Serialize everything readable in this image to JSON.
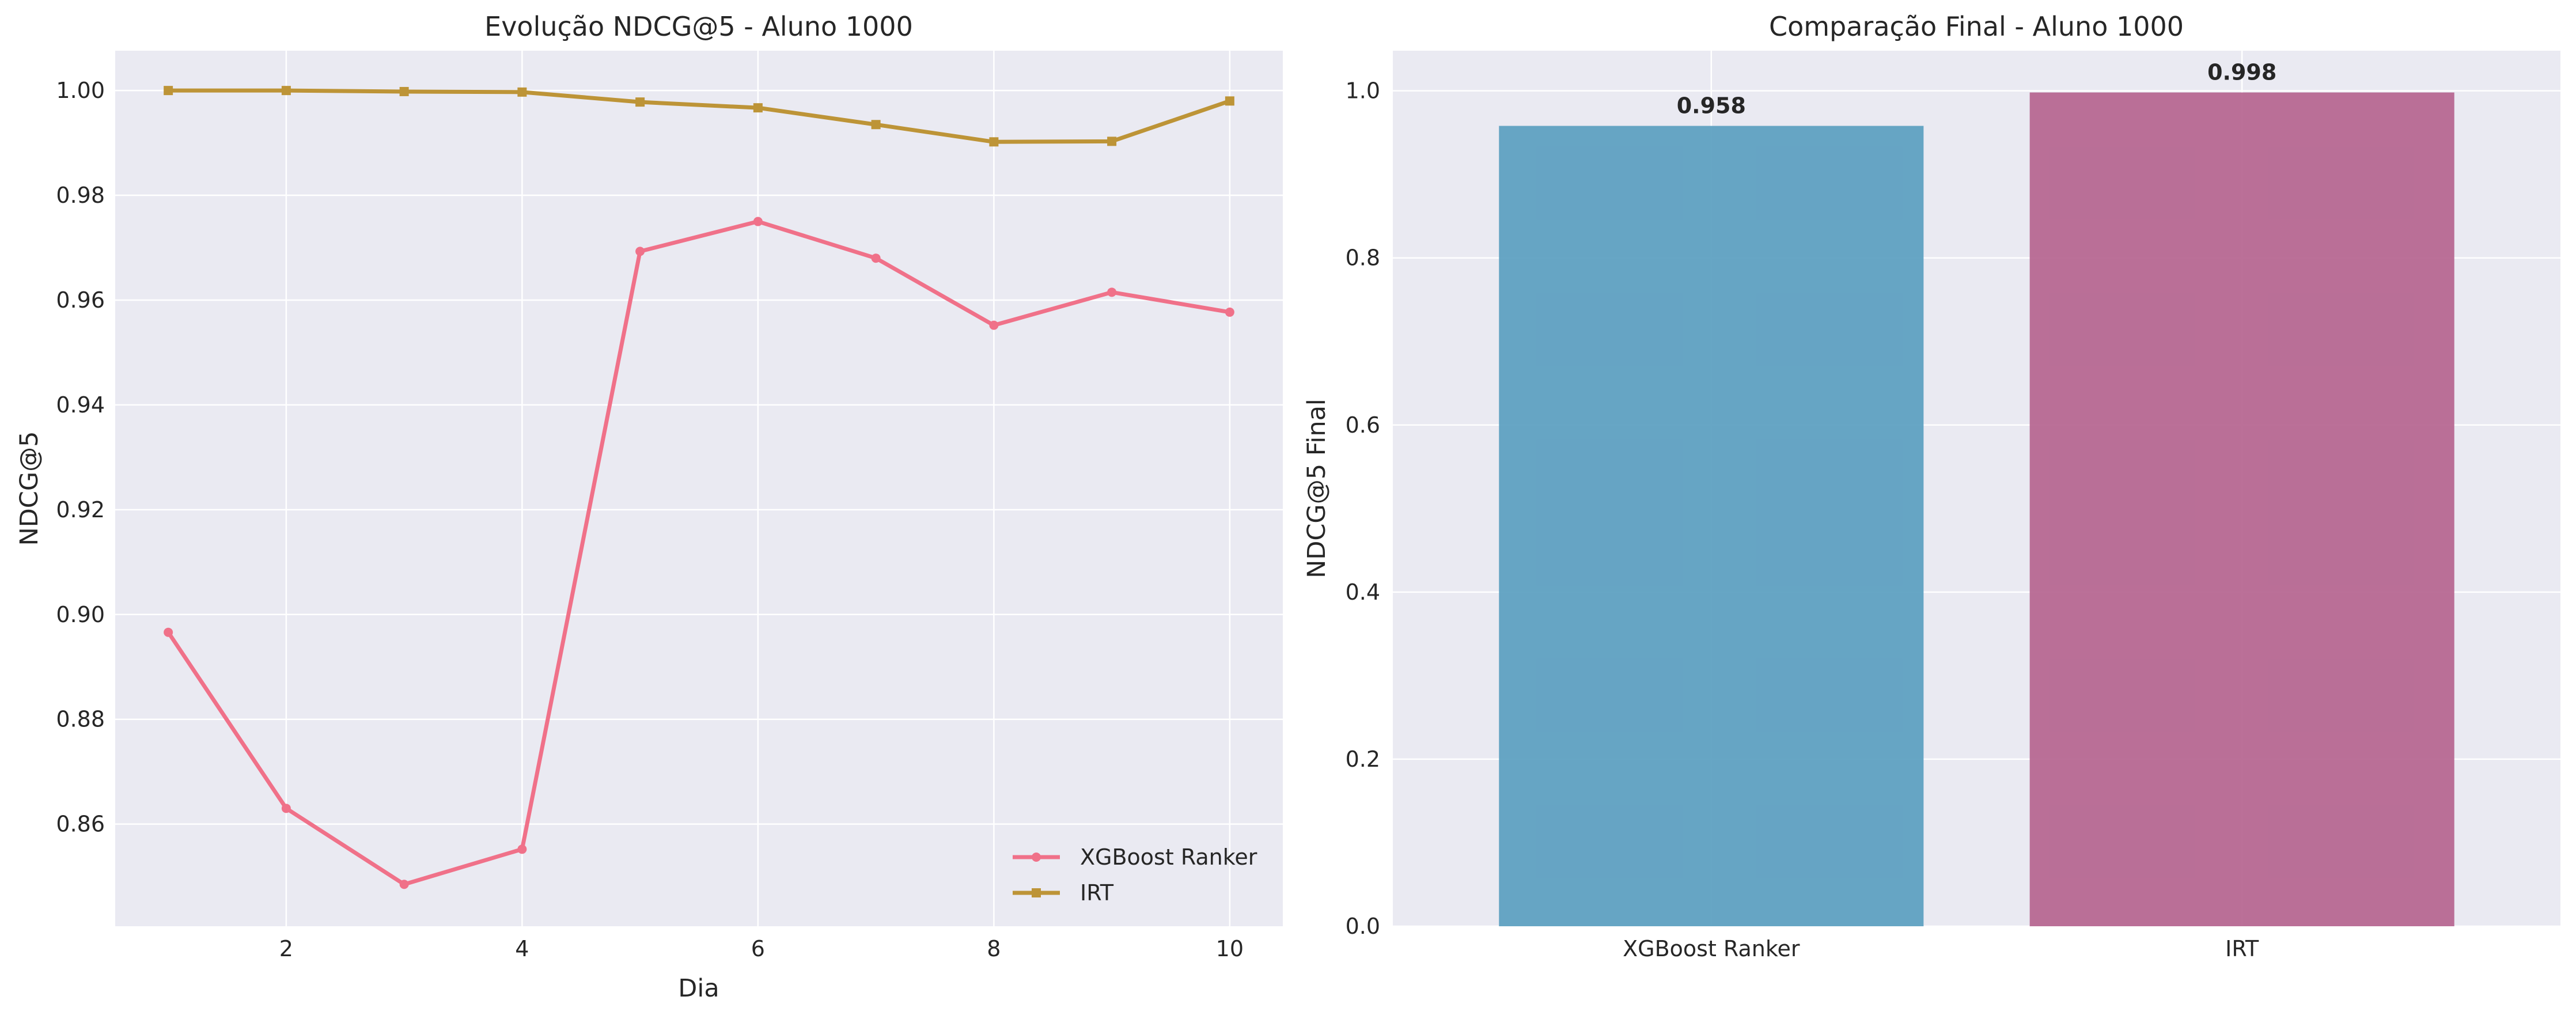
{
  "chart_data": [
    {
      "type": "line",
      "title": "Evolução NDCG@5 - Aluno 1000",
      "xlabel": "Dia",
      "ylabel": "NDCG@5",
      "x": [
        1,
        2,
        3,
        4,
        5,
        6,
        7,
        8,
        9,
        10
      ],
      "xticks": [
        "2",
        "4",
        "6",
        "8",
        "10"
      ],
      "yticks": [
        "0.86",
        "0.88",
        "0.90",
        "0.92",
        "0.94",
        "0.96",
        "0.98",
        "1.00"
      ],
      "xlim": [
        0.55,
        10.45
      ],
      "ylim": [
        0.8405,
        1.0076
      ],
      "grid": true,
      "legend_position": "lower-right",
      "series": [
        {
          "name": "XGBoost Ranker",
          "color": "#f07189",
          "marker": "circle",
          "values": [
            0.8966,
            0.863,
            0.8485,
            0.8552,
            0.9693,
            0.975,
            0.968,
            0.9552,
            0.9615,
            0.9577
          ]
        },
        {
          "name": "IRT",
          "color": "#bd9437",
          "marker": "square",
          "values": [
            1.0,
            1.0,
            0.9998,
            0.9997,
            0.9978,
            0.9967,
            0.9935,
            0.9902,
            0.9903,
            0.998
          ]
        }
      ]
    },
    {
      "type": "bar",
      "title": "Comparação Final - Aluno 1000",
      "xlabel": "",
      "ylabel": "NDCG@5 Final",
      "categories": [
        "XGBoost Ranker",
        "IRT"
      ],
      "values": [
        0.958,
        0.998
      ],
      "value_labels": [
        "0.958",
        "0.998"
      ],
      "colors": [
        "#5a9ec0",
        "#b5648f"
      ],
      "yticks": [
        "0.0",
        "0.2",
        "0.4",
        "0.6",
        "0.8",
        "1.0"
      ],
      "ylim": [
        0,
        1.048
      ],
      "grid": true
    }
  ]
}
